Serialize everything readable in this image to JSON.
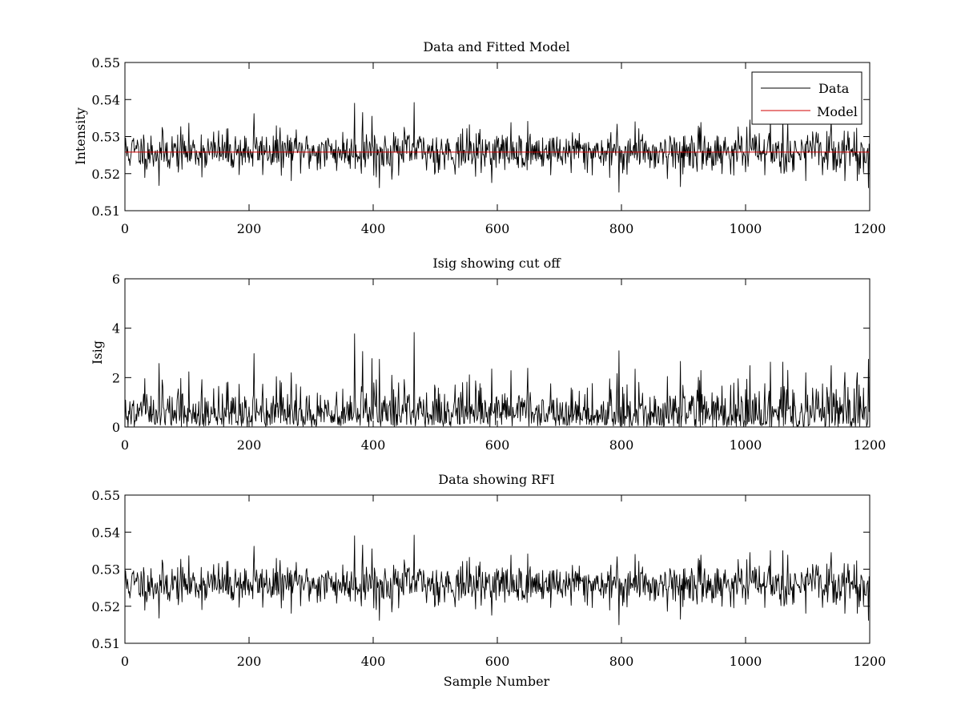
{
  "chart_data": [
    {
      "type": "line",
      "title": "Data and Fitted Model",
      "xlabel": "",
      "ylabel": "Intensity",
      "xlim": [
        0,
        1200
      ],
      "ylim": [
        0.51,
        0.55
      ],
      "xticks": [
        0,
        200,
        400,
        600,
        800,
        1000,
        1200
      ],
      "yticks": [
        0.51,
        0.52,
        0.53,
        0.54,
        0.55
      ],
      "xtick_labels": [
        "0",
        "200",
        "400",
        "600",
        "800",
        "1000",
        "1200"
      ],
      "ytick_labels": [
        "0.51",
        "0.52",
        "0.53",
        "0.54",
        "0.55"
      ],
      "legend_position": "top-right",
      "grid": false,
      "series": [
        {
          "name": "Data",
          "color": "#000000",
          "baseline": 0.526,
          "noise": 0.0028,
          "seed": 11,
          "spikes": [
            [
              370,
              0.539
            ],
            [
              383,
              0.5365
            ],
            [
              398,
              0.5355
            ],
            [
              466,
              0.5392
            ],
            [
              410,
              0.5162
            ],
            [
              796,
              0.515
            ],
            [
              1198,
              0.5162
            ],
            [
              1180,
              0.5181
            ],
            [
              895,
              0.5165
            ],
            [
              822,
              0.534
            ],
            [
              1060,
              0.535
            ],
            [
              1040,
              0.535
            ],
            [
              208,
              0.5362
            ],
            [
              55,
              0.5168
            ]
          ]
        },
        {
          "name": "Model",
          "color": "#d00000",
          "constant": 0.5258
        }
      ]
    },
    {
      "type": "line",
      "title": "Isig showing cut off",
      "xlabel": "",
      "ylabel": "Isig",
      "xlim": [
        0,
        1200
      ],
      "ylim": [
        0,
        6
      ],
      "xticks": [
        0,
        200,
        400,
        600,
        800,
        1000,
        1200
      ],
      "yticks": [
        0,
        2,
        4,
        6
      ],
      "xtick_labels": [
        "0",
        "200",
        "400",
        "600",
        "800",
        "1000",
        "1200"
      ],
      "ytick_labels": [
        "0",
        "2",
        "4",
        "6"
      ],
      "grid": false,
      "series": [
        {
          "name": "",
          "color": "#000000",
          "derived": "abs_dev",
          "source": 0,
          "center": 0.5258,
          "scale": 0.0035
        }
      ]
    },
    {
      "type": "line",
      "title": "Data showing RFI",
      "xlabel": "Sample Number",
      "ylabel": "",
      "xlim": [
        0,
        1200
      ],
      "ylim": [
        0.51,
        0.55
      ],
      "xticks": [
        0,
        200,
        400,
        600,
        800,
        1000,
        1200
      ],
      "yticks": [
        0.51,
        0.52,
        0.53,
        0.54,
        0.55
      ],
      "xtick_labels": [
        "0",
        "200",
        "400",
        "600",
        "800",
        "1000",
        "1200"
      ],
      "ytick_labels": [
        "0.51",
        "0.52",
        "0.53",
        "0.54",
        "0.55"
      ],
      "grid": false,
      "series": [
        {
          "name": "",
          "color": "#000000",
          "copy_of": 0
        }
      ]
    }
  ]
}
